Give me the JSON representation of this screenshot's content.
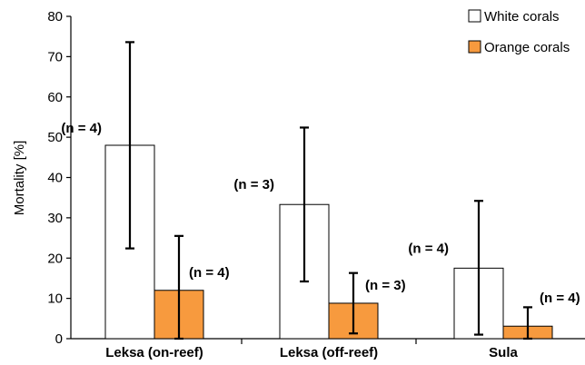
{
  "chart_data": {
    "type": "bar",
    "ylabel": "Mortality [%]",
    "xlabel": "",
    "ylim": [
      0,
      80
    ],
    "yticks": [
      0,
      10,
      20,
      30,
      40,
      50,
      60,
      70,
      80
    ],
    "categories": [
      "Leksa (on-reef)",
      "Leksa (off-reef)",
      "Sula"
    ],
    "legend_position": "top-right",
    "grid": false,
    "series": [
      {
        "name": "White corals",
        "color": "#ffffff",
        "values": [
          48,
          33.3,
          17.5
        ],
        "error_low": [
          22.4,
          14.2,
          1.0
        ],
        "error_high": [
          73.6,
          52.4,
          34.2
        ],
        "n_labels": [
          "(n = 4)",
          "(n = 3)",
          "(n = 4)"
        ]
      },
      {
        "name": "Orange corals",
        "color": "#f79a3e",
        "values": [
          12,
          8.8,
          3.1
        ],
        "error_low": [
          0,
          1.3,
          0
        ],
        "error_high": [
          25.5,
          16.3,
          7.8
        ],
        "n_labels": [
          "(n = 4)",
          "(n = 3)",
          "(n = 4)"
        ]
      }
    ]
  }
}
